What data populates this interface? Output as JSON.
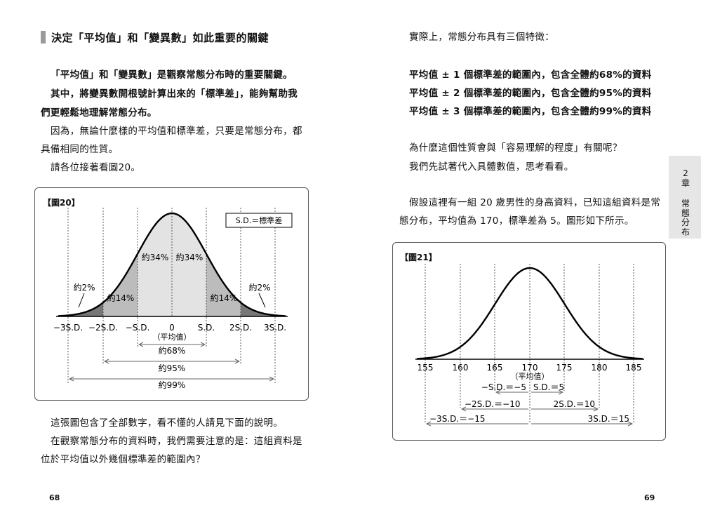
{
  "left_page": {
    "heading": "決定「平均值」和「變異數」如此重要的關鍵",
    "paragraphs": [
      "「平均值」和「變異數」是觀察常態分布時的重要關鍵。",
      "其中，將變異數開根號計算出來的「標準差」，能夠幫助我",
      "們更輕鬆地理解常態分布。",
      "因為，無論什麼樣的平均值和標準差，只要是常態分布，都",
      "具備相同的性質。",
      "請各位接著看圖20。"
    ],
    "after_paragraphs": [
      "這張圖包含了全部數字，看不懂的人請見下面的說明。",
      "在觀察常態分布的資料時，我們需要注意的是：這組資料是",
      "位於平均值以外幾個標準差的範圍內？"
    ],
    "page_number": "68"
  },
  "figure20": {
    "label": "【圖20】",
    "legend": "S.D.＝標準差",
    "area_labels": [
      "約2%",
      "約14%",
      "約34%",
      "約34%",
      "約14%",
      "約2%"
    ],
    "x_ticks": [
      "−3S.D.",
      "−2S.D.",
      "−S.D.",
      "0",
      "S.D.",
      "2S.D.",
      "3S.D."
    ],
    "mean_label": "（平均值）",
    "ranges": [
      "約68%",
      "約95%",
      "約99%"
    ]
  },
  "right_page": {
    "intro": "實際上，常態分布具有三個特徵：",
    "features": [
      "平均值 ± 1 個標準差的範圍內，包含全體約68%的資料",
      "平均值 ± 2 個標準差的範圍內，包含全體約95%的資料",
      "平均值 ± 3 個標準差的範圍內，包含全體約99%的資料"
    ],
    "question": [
      "為什麼這個性質會與「容易理解的程度」有關呢？",
      "我們先試著代入具體數值，思考看看。"
    ],
    "example": [
      "假設這裡有一組 20 歲男性的身高資料，已知這組資料是常",
      "態分布，平均值為 170，標準差為 5。圖形如下所示。"
    ],
    "page_number": "69"
  },
  "figure21": {
    "label": "【圖21】",
    "x_ticks": [
      "155",
      "160",
      "165",
      "170",
      "175",
      "180",
      "185"
    ],
    "mean_label": "（平均值）",
    "range_labels": [
      "−S.D.＝−5",
      "S.D.＝5",
      "−2S.D.＝−10",
      "2S.D.＝10",
      "−3S.D.＝−15",
      "3S.D.＝15"
    ]
  },
  "side_tab": {
    "chapter": "2章",
    "title": "常態分布"
  }
}
